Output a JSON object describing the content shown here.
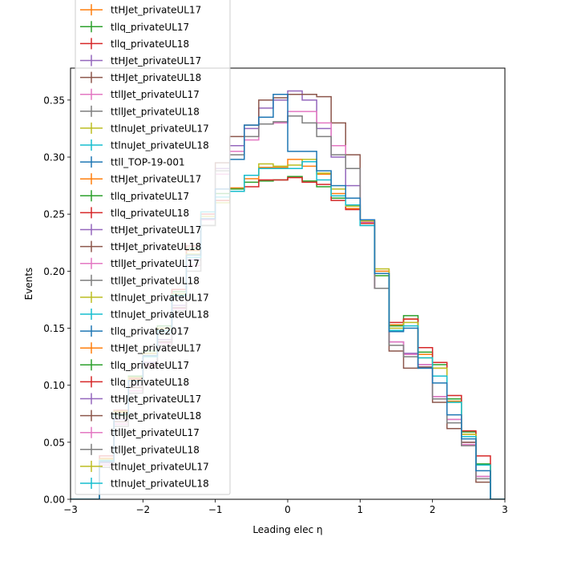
{
  "chart_data": {
    "type": "line",
    "style": "step histogram with error bars",
    "xlabel": "Leading elec η",
    "ylabel": "Events",
    "xlim": [
      -3,
      3
    ],
    "ylim": [
      0,
      0.378
    ],
    "x_ticks": [
      -3,
      -2,
      -1,
      0,
      1,
      2,
      3
    ],
    "x_tick_labels": [
      "−3",
      "−2",
      "−1",
      "0",
      "1",
      "2",
      "3"
    ],
    "y_ticks": [
      0,
      0.05,
      0.1,
      0.15,
      0.2,
      0.25,
      0.3,
      0.35
    ],
    "y_tick_labels": [
      "0.00",
      "0.05",
      "0.10",
      "0.15",
      "0.20",
      "0.25",
      "0.30",
      "0.35"
    ],
    "grid": false,
    "legend_position": "upper-left",
    "bin_edges": [
      -3,
      -2.8,
      -2.6,
      -2.4,
      -2.2,
      -2.0,
      -1.8,
      -1.6,
      -1.4,
      -1.2,
      -1.0,
      -0.8,
      -0.6,
      -0.4,
      -0.2,
      0,
      0.2,
      0.4,
      0.6,
      0.8,
      1.0,
      1.2,
      1.4,
      1.6,
      1.8,
      2.0,
      2.2,
      2.4,
      2.6,
      2.8,
      3.0
    ],
    "series": [
      {
        "name": "ttHJet_privateUL17",
        "color": "#ff7f0e",
        "values": [
          0,
          0,
          0.036,
          0.076,
          0.105,
          0.126,
          0.148,
          0.18,
          0.218,
          0.245,
          0.262,
          0.273,
          0.281,
          0.291,
          0.291,
          0.298,
          0.292,
          0.285,
          0.268,
          0.255,
          0.242,
          0.2,
          0.153,
          0.158,
          0.127,
          0.115,
          0.086,
          0.057,
          0.03,
          0
        ]
      },
      {
        "name": "tllq_privateUL17",
        "color": "#2ca02c",
        "values": [
          0,
          0,
          0.034,
          0.074,
          0.108,
          0.13,
          0.152,
          0.182,
          0.22,
          0.24,
          0.268,
          0.272,
          0.278,
          0.279,
          0.28,
          0.283,
          0.279,
          0.274,
          0.264,
          0.258,
          0.243,
          0.196,
          0.152,
          0.161,
          0.129,
          0.118,
          0.088,
          0.059,
          0.031,
          0
        ]
      },
      {
        "name": "tllq_privateUL18",
        "color": "#d62728",
        "values": [
          0,
          0,
          0.038,
          0.078,
          0.106,
          0.128,
          0.15,
          0.184,
          0.222,
          0.25,
          0.262,
          0.27,
          0.274,
          0.28,
          0.28,
          0.282,
          0.278,
          0.276,
          0.262,
          0.254,
          0.242,
          0.198,
          0.155,
          0.158,
          0.133,
          0.12,
          0.091,
          0.06,
          0.038,
          0
        ]
      },
      {
        "name": "ttHJet_privateUL17",
        "color": "#9467bd",
        "values": [
          0,
          0,
          0.032,
          0.07,
          0.1,
          0.12,
          0.14,
          0.17,
          0.21,
          0.245,
          0.29,
          0.31,
          0.325,
          0.343,
          0.35,
          0.358,
          0.35,
          0.325,
          0.3,
          0.275,
          0.243,
          0.185,
          0.138,
          0.128,
          0.118,
          0.09,
          0.07,
          0.05,
          0.02,
          0
        ]
      },
      {
        "name": "ttHJet_privateUL18",
        "color": "#8c564b",
        "values": [
          0,
          0,
          0.03,
          0.068,
          0.098,
          0.118,
          0.138,
          0.168,
          0.205,
          0.24,
          0.295,
          0.318,
          0.328,
          0.35,
          0.352,
          0.355,
          0.355,
          0.353,
          0.33,
          0.302,
          0.245,
          0.185,
          0.13,
          0.115,
          0.116,
          0.085,
          0.062,
          0.05,
          0.015,
          0
        ]
      },
      {
        "name": "ttllJet_privateUL17",
        "color": "#e377c2",
        "values": [
          0,
          0,
          0.03,
          0.066,
          0.095,
          0.117,
          0.137,
          0.167,
          0.205,
          0.245,
          0.285,
          0.305,
          0.315,
          0.329,
          0.33,
          0.34,
          0.34,
          0.33,
          0.31,
          0.29,
          0.243,
          0.185,
          0.138,
          0.127,
          0.118,
          0.09,
          0.07,
          0.048,
          0.02,
          0
        ]
      },
      {
        "name": "ttllJet_privateUL18",
        "color": "#7f7f7f",
        "values": [
          0,
          0,
          0.028,
          0.064,
          0.093,
          0.115,
          0.135,
          0.165,
          0.2,
          0.24,
          0.288,
          0.302,
          0.318,
          0.329,
          0.331,
          0.336,
          0.33,
          0.318,
          0.302,
          0.29,
          0.24,
          0.185,
          0.135,
          0.125,
          0.115,
          0.088,
          0.067,
          0.047,
          0.018,
          0
        ]
      },
      {
        "name": "ttlnuJet_privateUL17",
        "color": "#bcbd22",
        "values": [
          0,
          0,
          0.035,
          0.077,
          0.107,
          0.128,
          0.15,
          0.18,
          0.215,
          0.248,
          0.26,
          0.27,
          0.284,
          0.294,
          0.292,
          0.293,
          0.298,
          0.286,
          0.272,
          0.257,
          0.244,
          0.202,
          0.15,
          0.155,
          0.124,
          0.115,
          0.085,
          0.057,
          0.03,
          0
        ]
      },
      {
        "name": "ttlnuJet_privateUL18",
        "color": "#17becf",
        "values": [
          0,
          0,
          0.034,
          0.075,
          0.104,
          0.125,
          0.148,
          0.179,
          0.212,
          0.252,
          0.265,
          0.27,
          0.284,
          0.29,
          0.29,
          0.29,
          0.296,
          0.28,
          0.266,
          0.258,
          0.24,
          0.198,
          0.148,
          0.152,
          0.124,
          0.108,
          0.085,
          0.055,
          0.03,
          0
        ]
      },
      {
        "name": "ttll_TOP-19-001",
        "color": "#1f77b4",
        "values": [
          0,
          0,
          0.033,
          0.075,
          0.104,
          0.126,
          0.146,
          0.178,
          0.214,
          0.246,
          0.272,
          0.298,
          0.328,
          0.335,
          0.355,
          0.305,
          0.305,
          0.288,
          0.275,
          0.264,
          0.245,
          0.198,
          0.147,
          0.15,
          0.115,
          0.102,
          0.074,
          0.053,
          0.025,
          0
        ]
      }
    ],
    "legend_entries": [
      {
        "label": "ttHJet_privateUL17",
        "color": "#ff7f0e"
      },
      {
        "label": "tllq_privateUL17",
        "color": "#2ca02c"
      },
      {
        "label": "tllq_privateUL18",
        "color": "#d62728"
      },
      {
        "label": "ttHJet_privateUL17",
        "color": "#9467bd"
      },
      {
        "label": "ttHJet_privateUL18",
        "color": "#8c564b"
      },
      {
        "label": "ttllJet_privateUL17",
        "color": "#e377c2"
      },
      {
        "label": "ttllJet_privateUL18",
        "color": "#7f7f7f"
      },
      {
        "label": "ttlnuJet_privateUL17",
        "color": "#bcbd22"
      },
      {
        "label": "ttlnuJet_privateUL18",
        "color": "#17becf"
      },
      {
        "label": "ttll_TOP-19-001",
        "color": "#1f77b4"
      },
      {
        "label": "ttHJet_privateUL17",
        "color": "#ff7f0e"
      },
      {
        "label": "tllq_privateUL17",
        "color": "#2ca02c"
      },
      {
        "label": "tllq_privateUL18",
        "color": "#d62728"
      },
      {
        "label": "ttHJet_privateUL17",
        "color": "#9467bd"
      },
      {
        "label": "ttHJet_privateUL18",
        "color": "#8c564b"
      },
      {
        "label": "ttllJet_privateUL17",
        "color": "#e377c2"
      },
      {
        "label": "ttllJet_privateUL18",
        "color": "#7f7f7f"
      },
      {
        "label": "ttlnuJet_privateUL17",
        "color": "#bcbd22"
      },
      {
        "label": "ttlnuJet_privateUL18",
        "color": "#17becf"
      },
      {
        "label": "tllq_private2017",
        "color": "#1f77b4"
      },
      {
        "label": "ttHJet_privateUL17",
        "color": "#ff7f0e"
      },
      {
        "label": "tllq_privateUL17",
        "color": "#2ca02c"
      },
      {
        "label": "tllq_privateUL18",
        "color": "#d62728"
      },
      {
        "label": "ttHJet_privateUL17",
        "color": "#9467bd"
      },
      {
        "label": "ttHJet_privateUL18",
        "color": "#8c564b"
      },
      {
        "label": "ttllJet_privateUL17",
        "color": "#e377c2"
      },
      {
        "label": "ttllJet_privateUL18",
        "color": "#7f7f7f"
      },
      {
        "label": "ttlnuJet_privateUL17",
        "color": "#bcbd22"
      },
      {
        "label": "ttlnuJet_privateUL18",
        "color": "#17becf"
      }
    ]
  }
}
